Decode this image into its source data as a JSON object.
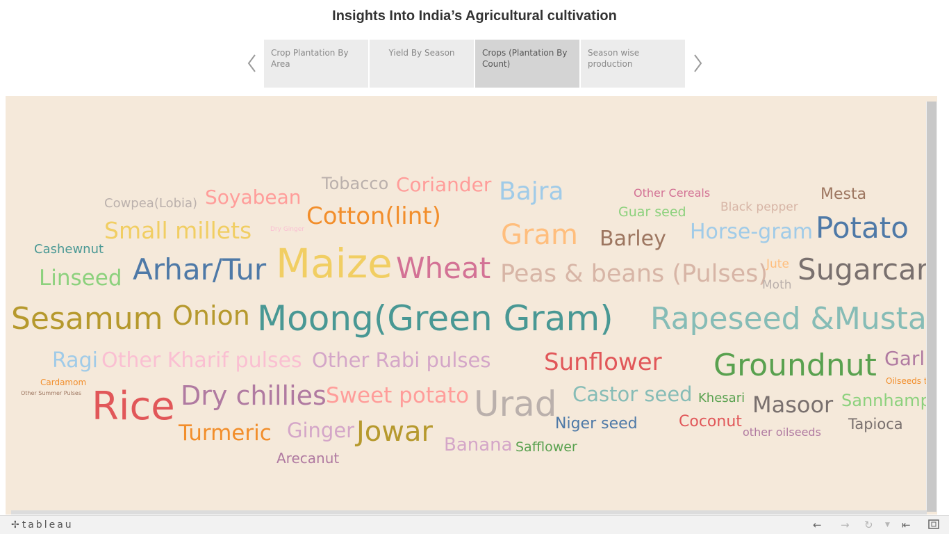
{
  "header": {
    "title": "Insights Into India’s Agricultural cultivation"
  },
  "story": {
    "tabs": [
      {
        "label": "Crop Plantation By Area"
      },
      {
        "label": "Yield By Season"
      },
      {
        "label": "Crops (Plantation By Count)"
      },
      {
        "label": "Season wise production"
      }
    ],
    "active_tab": 2
  },
  "chart_data": {
    "type": "word-cloud",
    "words": [
      {
        "text": "Tobacco",
        "color": "#bab0ac"
      },
      {
        "text": "Coriander",
        "color": "#ff9d9a"
      },
      {
        "text": "Bajra",
        "color": "#a0cbe8"
      },
      {
        "text": "Other Cereals",
        "color": "#d37295"
      },
      {
        "text": "Mesta",
        "color": "#9d7660"
      },
      {
        "text": "Cowpea(Lobia)",
        "color": "#bab0ac"
      },
      {
        "text": "Soyabean",
        "color": "#ff9d9a"
      },
      {
        "text": "Guar seed",
        "color": "#8cd17d"
      },
      {
        "text": "Black pepper",
        "color": "#d7b5a6"
      },
      {
        "text": "Cotton(lint)",
        "color": "#f28e2b"
      },
      {
        "text": "Small millets",
        "color": "#f1ce63"
      },
      {
        "text": "Dry Ginger",
        "color": "#fabfd2"
      },
      {
        "text": "Gram",
        "color": "#ffbe7d"
      },
      {
        "text": "Barley",
        "color": "#9d7660"
      },
      {
        "text": "Horse-gram",
        "color": "#a0cbe8"
      },
      {
        "text": "Potato",
        "color": "#4e79a7"
      },
      {
        "text": "Cashewnut",
        "color": "#499894"
      },
      {
        "text": "Arhar/Tur",
        "color": "#4e79a7"
      },
      {
        "text": "Maize",
        "color": "#f1ce63"
      },
      {
        "text": "Wheat",
        "color": "#d37295"
      },
      {
        "text": "Peas & beans (Pulses)",
        "color": "#d7b5a6"
      },
      {
        "text": "Jute",
        "color": "#ffbe7d"
      },
      {
        "text": "Moth",
        "color": "#bab0ac"
      },
      {
        "text": "Sugarcane",
        "color": "#79706e"
      },
      {
        "text": "Linseed",
        "color": "#8cd17d"
      },
      {
        "text": "Sesamum",
        "color": "#b6992d"
      },
      {
        "text": "Onion",
        "color": "#b6992d"
      },
      {
        "text": "Moong(Green Gram)",
        "color": "#499894"
      },
      {
        "text": "Rapeseed &Mustard",
        "color": "#86bcb6"
      },
      {
        "text": "Ragi",
        "color": "#a0cbe8"
      },
      {
        "text": "Other Kharif pulses",
        "color": "#fabfd2"
      },
      {
        "text": "Other Rabi pulses",
        "color": "#d4a6c8"
      },
      {
        "text": "Sunflower",
        "color": "#e15759"
      },
      {
        "text": "Groundnut",
        "color": "#59a14f"
      },
      {
        "text": "Garlic",
        "color": "#b07aa1"
      },
      {
        "text": "Cardamom",
        "color": "#f28e2b"
      },
      {
        "text": "Oilseeds total",
        "color": "#f28e2b"
      },
      {
        "text": "Other Summer Pulses",
        "color": "#9d7660"
      },
      {
        "text": "Rice",
        "color": "#e15759"
      },
      {
        "text": "Dry chillies",
        "color": "#b07aa1"
      },
      {
        "text": "Sweet potato",
        "color": "#ff9d9a"
      },
      {
        "text": "Urad",
        "color": "#bab0ac"
      },
      {
        "text": "Castor seed",
        "color": "#86bcb6"
      },
      {
        "text": "Khesari",
        "color": "#59a14f"
      },
      {
        "text": "Masoor",
        "color": "#79706e"
      },
      {
        "text": "Sannhamp",
        "color": "#8cd17d"
      },
      {
        "text": "Turmeric",
        "color": "#f28e2b"
      },
      {
        "text": "Ginger",
        "color": "#d4a6c8"
      },
      {
        "text": "Jowar",
        "color": "#b6992d"
      },
      {
        "text": "Niger seed",
        "color": "#4e79a7"
      },
      {
        "text": "Coconut",
        "color": "#e15759"
      },
      {
        "text": "other oilseeds",
        "color": "#b07aa1"
      },
      {
        "text": "Tapioca",
        "color": "#79706e"
      },
      {
        "text": "Banana",
        "color": "#d4a6c8"
      },
      {
        "text": "Safflower",
        "color": "#59a14f"
      },
      {
        "text": "Arecanut",
        "color": "#b07aa1"
      }
    ]
  },
  "toolbar": {
    "logo_text": "tableau",
    "icons": [
      "undo-icon",
      "redo-icon",
      "revert-icon",
      "dropdown-icon",
      "reset-icon",
      "fullscreen-icon"
    ]
  }
}
